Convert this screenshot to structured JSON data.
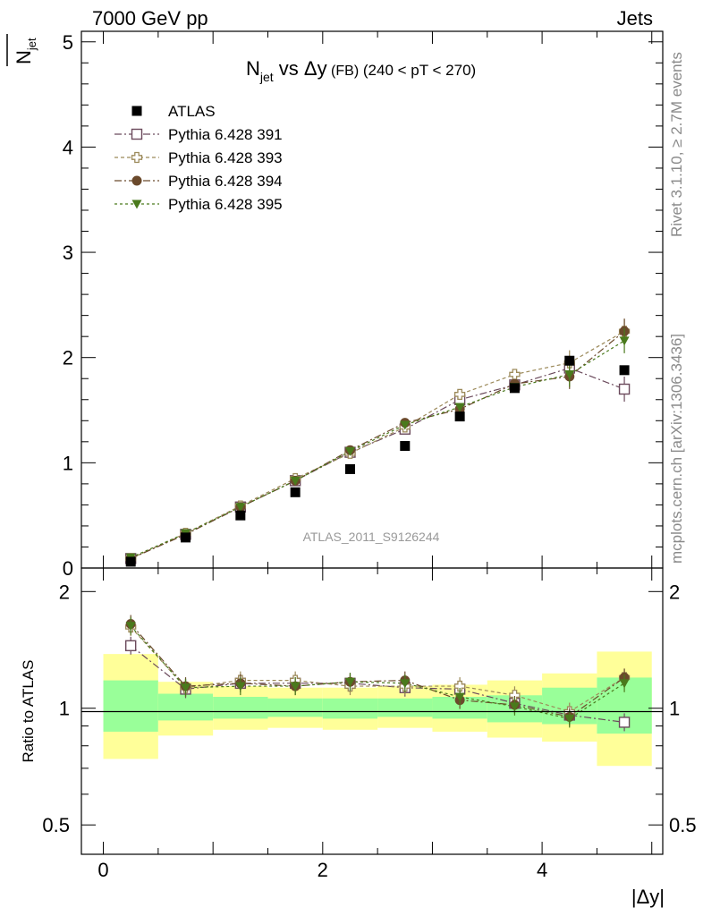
{
  "header": {
    "energy_label": "7000 GeV pp",
    "category_label": "Jets",
    "rivet_label": "Rivet 3.1.10, ≥ 2.7M events",
    "mcplots_label": "mcplots.cern.ch [arXiv:1306.3436]",
    "analysis_label": "ATLAS_2011_S9126244"
  },
  "chart_data": {
    "type": "scatter",
    "title_main": "N",
    "title_sub": "jet",
    "title_rest": " vs Δy",
    "title_small": " (FB)",
    "title_range": " (240 < pT < 270)",
    "xlabel": "|Δy|",
    "ylabel_main": "N",
    "ylabel_sub": "jet",
    "ratio_ylabel": "Ratio to ATLAS",
    "xlim": [
      -0.2,
      5.1
    ],
    "ylim_main": [
      0,
      5.1
    ],
    "ylim_ratio": [
      0.42,
      2.3
    ],
    "x_ticks": [
      0,
      2,
      4
    ],
    "y_ticks_main": [
      0,
      1,
      2,
      3,
      4,
      5
    ],
    "y_ticks_ratio": [
      0.5,
      1,
      2
    ],
    "x_tick_labels": [
      "0",
      "2",
      "4"
    ],
    "y_tick_labels_main": [
      "0",
      "1",
      "2",
      "3",
      "4",
      "5"
    ],
    "y_tick_labels_ratio": [
      "0.5",
      "1",
      "2"
    ],
    "x": [
      0.25,
      0.75,
      1.25,
      1.75,
      2.25,
      2.75,
      3.25,
      3.75,
      4.25,
      4.75
    ],
    "data": {
      "name": "ATLAS",
      "values": [
        0.06,
        0.29,
        0.5,
        0.72,
        0.94,
        1.16,
        1.44,
        1.71,
        1.97,
        1.88
      ],
      "color": "#000000"
    },
    "bands": {
      "edges": [
        0,
        0.5,
        1.0,
        1.5,
        2.0,
        2.5,
        3.0,
        3.5,
        4.0,
        4.5,
        5.0
      ],
      "yellow": [
        [
          0.74,
          1.38
        ],
        [
          0.85,
          1.17
        ],
        [
          0.88,
          1.14
        ],
        [
          0.89,
          1.13
        ],
        [
          0.88,
          1.13
        ],
        [
          0.89,
          1.14
        ],
        [
          0.87,
          1.15
        ],
        [
          0.84,
          1.18
        ],
        [
          0.82,
          1.23
        ],
        [
          0.71,
          1.4
        ]
      ],
      "green": [
        [
          0.87,
          1.18
        ],
        [
          0.93,
          1.09
        ],
        [
          0.94,
          1.07
        ],
        [
          0.95,
          1.06
        ],
        [
          0.94,
          1.06
        ],
        [
          0.95,
          1.06
        ],
        [
          0.94,
          1.07
        ],
        [
          0.92,
          1.08
        ],
        [
          0.91,
          1.13
        ],
        [
          0.86,
          1.2
        ]
      ],
      "yellow_color": "#ffff99",
      "green_color": "#99ff99"
    },
    "series": [
      {
        "name": "Pythia 6.428 391",
        "values": [
          0.09,
          0.32,
          0.58,
          0.83,
          1.1,
          1.32,
          1.6,
          1.74,
          1.9,
          1.7
        ],
        "ratio": [
          1.45,
          1.12,
          1.16,
          1.16,
          1.16,
          1.13,
          1.12,
          1.03,
          0.96,
          0.92
        ],
        "color": "#6b4a5c",
        "marker": "open-square",
        "dash": "8,3,2,3"
      },
      {
        "name": "Pythia 6.428 393",
        "values": [
          0.09,
          0.33,
          0.59,
          0.85,
          1.09,
          1.34,
          1.65,
          1.84,
          1.95,
          2.25
        ],
        "ratio": [
          1.62,
          1.13,
          1.18,
          1.18,
          1.14,
          1.14,
          1.14,
          1.08,
          0.98,
          1.2
        ],
        "color": "#9c8a5a",
        "marker": "open-cross",
        "dash": "4,3"
      },
      {
        "name": "Pythia 6.428 394",
        "values": [
          0.09,
          0.32,
          0.58,
          0.83,
          1.12,
          1.38,
          1.51,
          1.75,
          1.82,
          2.25
        ],
        "ratio": [
          1.65,
          1.14,
          1.16,
          1.14,
          1.17,
          1.18,
          1.05,
          1.02,
          0.95,
          1.2
        ],
        "color": "#6b4a2c",
        "marker": "filled-circle",
        "dash": "8,3,2,3"
      },
      {
        "name": "Pythia 6.428 395",
        "values": [
          0.1,
          0.33,
          0.58,
          0.83,
          1.11,
          1.36,
          1.53,
          1.72,
          1.84,
          2.16
        ],
        "ratio": [
          1.63,
          1.13,
          1.14,
          1.14,
          1.17,
          1.16,
          1.07,
          1.01,
          0.94,
          1.16
        ],
        "color": "#4a7a1c",
        "marker": "filled-triangle-down",
        "dash": "3,3"
      }
    ]
  }
}
